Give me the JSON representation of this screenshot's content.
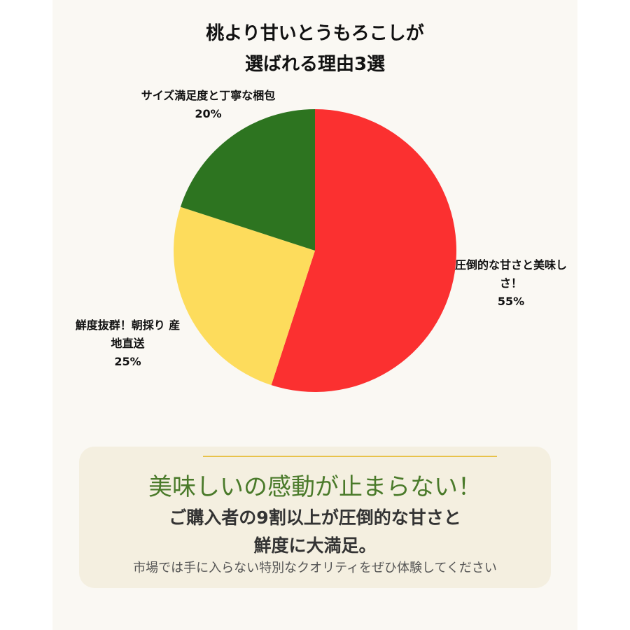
{
  "chart_data": {
    "type": "pie",
    "title": "桃より甘いとうもろこしが\n選ばれる理由3選",
    "categories": [
      "圧倒的な甘さと美味しさ！",
      "鮮度抜群！朝採り 産地直送",
      "サイズ満足度と丁寧な梱包"
    ],
    "values": [
      55,
      25,
      20
    ],
    "value_labels": [
      "55%",
      "25%",
      "20%"
    ],
    "colors": [
      "#fb3030",
      "#fddc5c",
      "#2d7420"
    ]
  },
  "panel": {
    "heading": "美味しいの感動が止まらない！",
    "message": "ご購入者の9割以上が圧倒的な甘さと\n鮮度に大満足。",
    "note": "市場では手に入らない特別なクオリティをぜひ体験してください"
  }
}
